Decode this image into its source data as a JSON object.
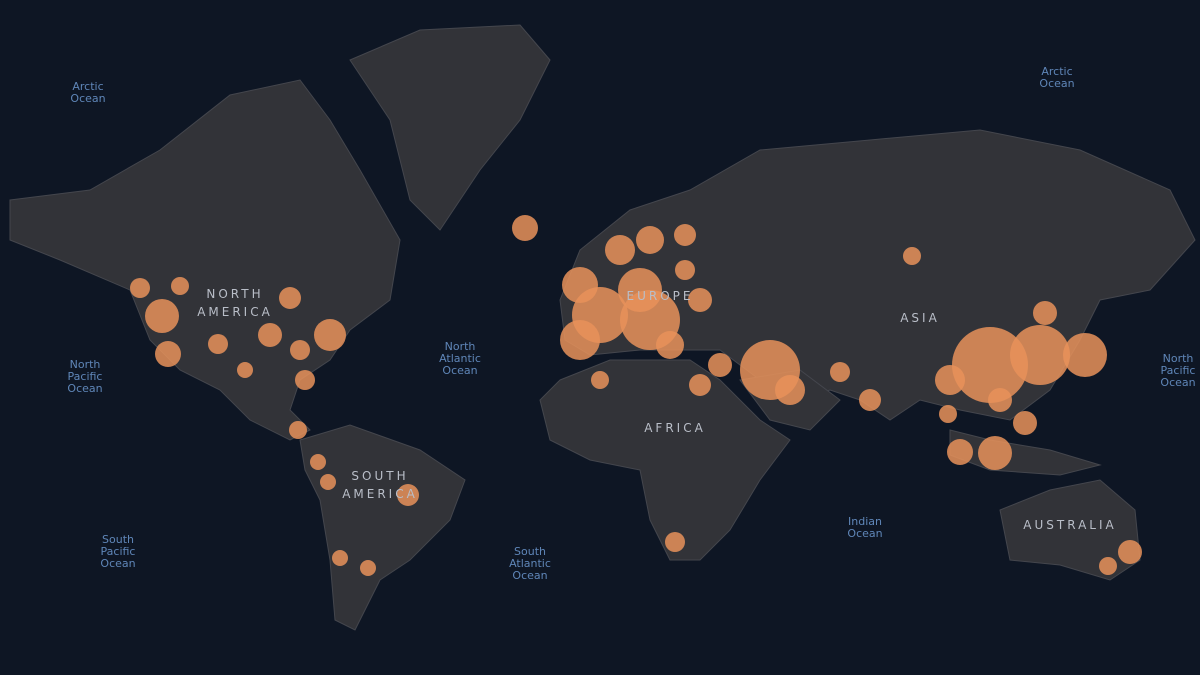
{
  "map": {
    "labels": [
      {
        "lines": [
          "Arctic",
          "Ocean"
        ]
      },
      {
        "lines": [
          "Arctic",
          "Ocean"
        ]
      },
      {
        "lines": [
          "NORTH",
          "AMERICA"
        ]
      },
      {
        "lines": [
          "North",
          "Pacific",
          "Ocean"
        ]
      },
      {
        "lines": [
          "North",
          "Atlantic",
          "Ocean"
        ]
      },
      {
        "lines": [
          "North",
          "Pacific",
          "Ocean"
        ]
      },
      {
        "lines": [
          "EUROPE"
        ]
      },
      {
        "lines": [
          "ASIA"
        ]
      },
      {
        "lines": [
          "AFRICA"
        ]
      },
      {
        "lines": [
          "SOUTH",
          "AMERICA"
        ]
      },
      {
        "lines": [
          "South",
          "Pacific",
          "Ocean"
        ]
      },
      {
        "lines": [
          "South",
          "Atlantic",
          "Ocean"
        ]
      },
      {
        "lines": [
          "Indian",
          "Ocean"
        ]
      },
      {
        "lines": [
          "AUSTRALIA"
        ]
      }
    ]
  }
}
